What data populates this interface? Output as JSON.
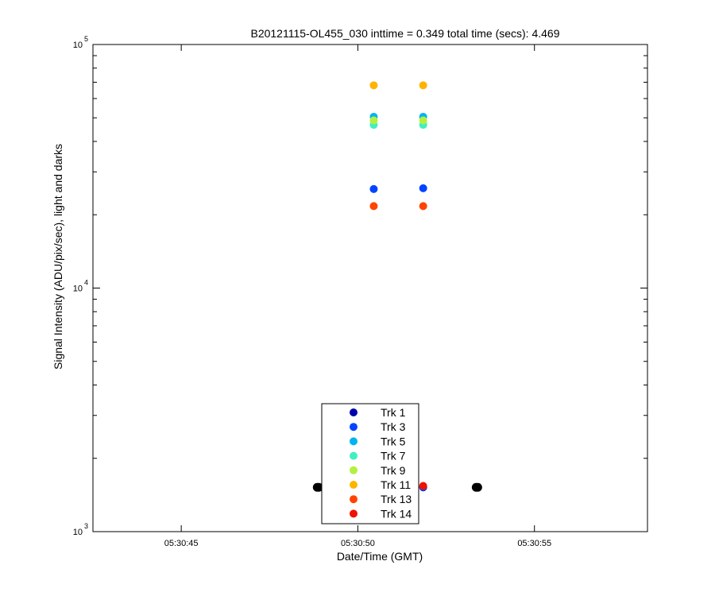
{
  "chart_data": {
    "type": "scatter",
    "title": "B20121115-OL455_030 inttime = 0.349 total time (secs): 4.469",
    "xlabel": "Date/Time (GMT)",
    "ylabel": "Signal Intensity (ADU/pix/sec), light and darks",
    "yscale": "log",
    "ylim": [
      1000,
      100000
    ],
    "xlim_seconds": [
      42.5,
      58.2
    ],
    "x_ticks": [
      {
        "t": 45,
        "label": "05:30:45"
      },
      {
        "t": 50,
        "label": "05:30:50"
      },
      {
        "t": 55,
        "label": "05:30:55"
      }
    ],
    "y_ticks": [
      {
        "base": "10",
        "exp": "3",
        "value": 1000
      },
      {
        "base": "10",
        "exp": "4",
        "value": 10000
      },
      {
        "base": "10",
        "exp": "5",
        "value": 100000
      }
    ],
    "series": [
      {
        "name": "Trk 1",
        "color": "#0000aa",
        "points": [
          {
            "t": 51.85,
            "y": 1520
          }
        ]
      },
      {
        "name": "Trk 3",
        "color": "#0044ff",
        "points": [
          {
            "t": 50.45,
            "y": 25500
          },
          {
            "t": 51.85,
            "y": 25700
          },
          {
            "t": 51.85,
            "y": 1525
          }
        ]
      },
      {
        "name": "Trk 5",
        "color": "#00b4f0",
        "points": [
          {
            "t": 50.45,
            "y": 50500
          },
          {
            "t": 51.85,
            "y": 50500
          }
        ]
      },
      {
        "name": "Trk 7",
        "color": "#40f0c0",
        "points": [
          {
            "t": 50.45,
            "y": 46800
          },
          {
            "t": 51.85,
            "y": 46800
          }
        ]
      },
      {
        "name": "Trk 9",
        "color": "#b4f040",
        "points": [
          {
            "t": 50.45,
            "y": 48800
          },
          {
            "t": 51.85,
            "y": 48800
          }
        ]
      },
      {
        "name": "Trk 11",
        "color": "#ffb400",
        "points": [
          {
            "t": 50.45,
            "y": 68000
          },
          {
            "t": 51.85,
            "y": 68000
          }
        ]
      },
      {
        "name": "Trk 13",
        "color": "#ff4400",
        "points": [
          {
            "t": 50.45,
            "y": 21700
          },
          {
            "t": 51.85,
            "y": 21700
          }
        ]
      },
      {
        "name": "Trk 14",
        "color": "#ee1100",
        "points": [
          {
            "t": 51.85,
            "y": 1540
          }
        ]
      }
    ],
    "darks": {
      "color": "#000000",
      "points": [
        {
          "t": 48.85,
          "y": 1520
        },
        {
          "t": 53.35,
          "y": 1520
        }
      ]
    },
    "legend_position": "bottom-center"
  }
}
